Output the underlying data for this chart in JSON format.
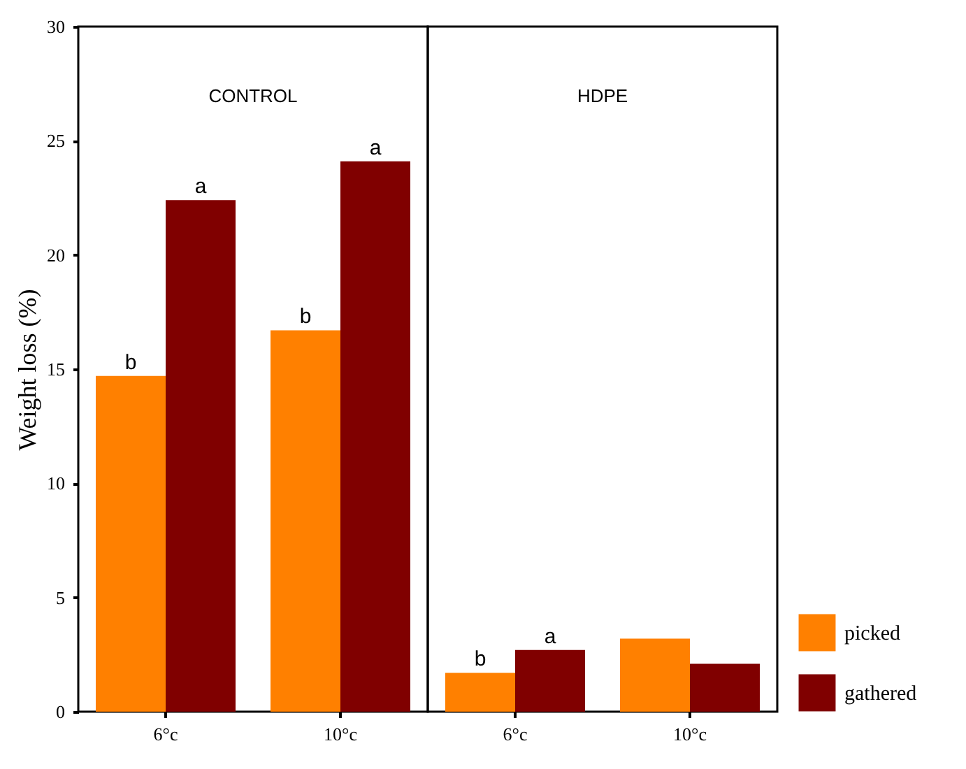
{
  "chart_data": [
    {
      "type": "bar",
      "title": "CONTROL",
      "ylabel": "Weight loss (%)",
      "categories": [
        "6°c",
        "10°c"
      ],
      "series": [
        {
          "color": "#ff8000",
          "values": [
            14.7,
            16.7
          ]
        },
        {
          "color": "#800000",
          "values": [
            22.4,
            24.1
          ]
        }
      ],
      "ylim": [
        0,
        30
      ],
      "yticks": [
        0,
        5,
        10,
        15,
        20,
        25,
        30
      ],
      "annotations": [
        {
          "text": "b",
          "x": "6°c",
          "y": 14.7
        },
        {
          "text": "a",
          "x": "6°c",
          "y": 22.4
        },
        {
          "text": "b",
          "x": "10°c",
          "y": 16.7
        },
        {
          "text": "a",
          "x": "10°c",
          "y": 24.1
        }
      ]
    },
    {
      "type": "bar",
      "title": "HDPE",
      "categories": [
        "6°c",
        "10°c"
      ],
      "series": [
        {
          "name": "picked",
          "color": "#ff8000",
          "values": [
            1.7,
            3.2
          ]
        },
        {
          "name": "gathered",
          "color": "#800000",
          "values": [
            2.7,
            2.1
          ]
        }
      ],
      "ylim": [
        0,
        30
      ],
      "yticks": [
        0,
        5,
        10,
        15,
        20,
        25,
        30
      ],
      "tick_labels": "x",
      "legend": "bottom right",
      "annotations": [
        {
          "text": "b",
          "x": "6°c",
          "y": 1.7
        },
        {
          "text": "a",
          "x": "6°c",
          "y": 2.7
        }
      ]
    }
  ]
}
